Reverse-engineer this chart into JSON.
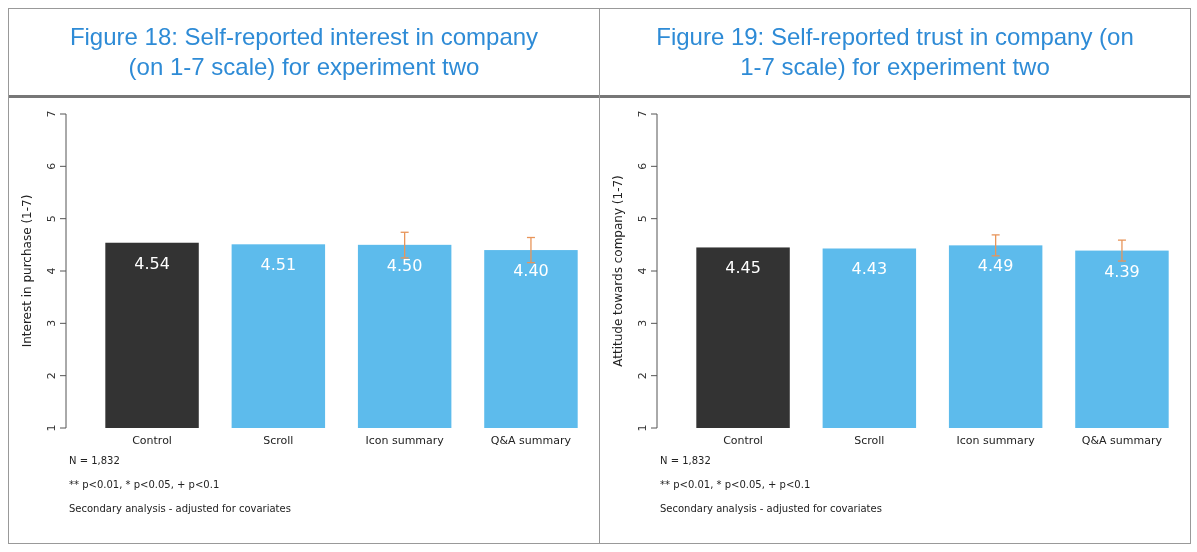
{
  "chart_data": [
    {
      "type": "bar",
      "title": "Figure 18: Self-reported interest in company (on 1-7 scale) for experiment two",
      "ylabel": "Interest in purchase (1-7)",
      "categories": [
        "Control",
        "Scroll",
        "Icon summary",
        "Q&A summary"
      ],
      "values": [
        4.54,
        4.51,
        4.5,
        4.4
      ],
      "value_labels": [
        "4.54",
        "4.51",
        "4.50",
        "4.40"
      ],
      "colors": [
        "#333333",
        "#5dbbec",
        "#5dbbec",
        "#5dbbec"
      ],
      "errors": [
        null,
        null,
        [
          4.25,
          4.74
        ],
        [
          4.16,
          4.64
        ]
      ],
      "ylim": [
        1,
        7
      ],
      "yticks": [
        1,
        2,
        3,
        4,
        5,
        6,
        7
      ],
      "annotations": [
        "N =  1,832",
        "** p<0.01, * p<0.05, + p<0.1",
        "Secondary analysis - adjusted for covariates"
      ]
    },
    {
      "type": "bar",
      "title": "Figure 19: Self-reported trust in company (on 1-7 scale) for experiment two",
      "ylabel": "Attitude towards company (1-7)",
      "categories": [
        "Control",
        "Scroll",
        "Icon summary",
        "Q&A summary"
      ],
      "values": [
        4.45,
        4.43,
        4.49,
        4.39
      ],
      "value_labels": [
        "4.45",
        "4.43",
        "4.49",
        "4.39"
      ],
      "colors": [
        "#333333",
        "#5dbbec",
        "#5dbbec",
        "#5dbbec"
      ],
      "errors": [
        null,
        null,
        [
          4.29,
          4.69
        ],
        [
          4.19,
          4.59
        ]
      ],
      "ylim": [
        1,
        7
      ],
      "yticks": [
        1,
        2,
        3,
        4,
        5,
        6,
        7
      ],
      "annotations": [
        "N =  1,832",
        "** p<0.01, * p<0.05, + p<0.1",
        "Secondary analysis - adjusted for covariates"
      ]
    }
  ]
}
